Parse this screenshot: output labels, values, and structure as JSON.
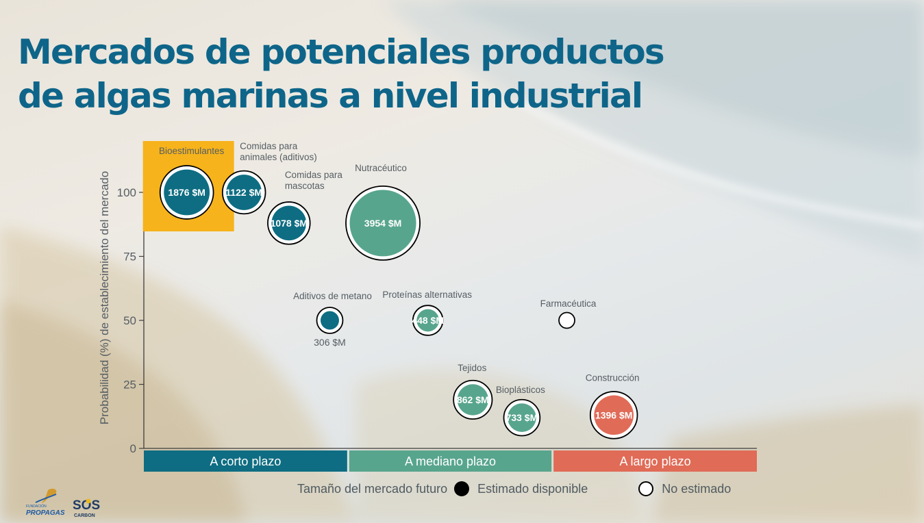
{
  "slide": {
    "title_line1": "Mercados de potenciales productos",
    "title_line2": "de algas marinas a nivel industrial"
  },
  "chart_data": {
    "type": "bubble",
    "ylabel": "Probabilidad (%) de establecimiento del mercado",
    "ylim": [
      0,
      115
    ],
    "yticks": [
      0,
      25,
      50,
      75,
      100
    ],
    "categories": [
      {
        "label": "A corto plazo",
        "color": "#0e6d82"
      },
      {
        "label": "A mediano plazo",
        "color": "#58a58d"
      },
      {
        "label": "A largo plazo",
        "color": "#e06b57"
      }
    ],
    "highlight": {
      "label": "Bioestimulantes",
      "color": "#f6b31b"
    },
    "points": [
      {
        "name": "Bioestimulantes",
        "x": 0.21,
        "y": 100,
        "size_musd": 1876,
        "value_label": "1876 $M",
        "estimated": true,
        "term": "A corto plazo"
      },
      {
        "name": "Comidas para animales (aditivos)",
        "x": 0.49,
        "y": 100,
        "size_musd": 1122,
        "value_label": "1122 $M",
        "estimated": true,
        "term": "A corto plazo"
      },
      {
        "name": "Comidas para mascotas",
        "x": 0.71,
        "y": 88,
        "size_musd": 1078,
        "value_label": "1078 $M",
        "estimated": true,
        "term": "A corto plazo"
      },
      {
        "name": "Nutracéutico",
        "x": 1.17,
        "y": 88,
        "size_musd": 3954,
        "value_label": "3954 $M",
        "estimated": true,
        "term": "A mediano plazo"
      },
      {
        "name": "Aditivos de metano",
        "x": 0.91,
        "y": 50,
        "size_musd": 306,
        "value_label": "306 $M",
        "estimated": true,
        "term": "A corto plazo"
      },
      {
        "name": "Proteínas alternativas",
        "x": 1.39,
        "y": 50,
        "size_musd": 448,
        "value_label": "448 $M",
        "estimated": true,
        "term": "A mediano plazo"
      },
      {
        "name": "Farmacéutica",
        "x": 2.07,
        "y": 50,
        "size_musd": null,
        "value_label": "",
        "estimated": false,
        "term": "A largo plazo"
      },
      {
        "name": "Tejidos",
        "x": 1.61,
        "y": 19,
        "size_musd": 862,
        "value_label": "862 $M",
        "estimated": true,
        "term": "A mediano plazo"
      },
      {
        "name": "Bioplásticos",
        "x": 1.85,
        "y": 12,
        "size_musd": 733,
        "value_label": "733 $M",
        "estimated": true,
        "term": "A mediano plazo"
      },
      {
        "name": "Construcción",
        "x": 2.3,
        "y": 13,
        "size_musd": 1396,
        "value_label": "1396 $M",
        "estimated": true,
        "term": "A largo plazo"
      }
    ],
    "legend": {
      "title": "Tamaño del mercado futuro",
      "items": [
        {
          "label": "Estimado disponible",
          "style": "filled",
          "color": "#000000"
        },
        {
          "label": "No estimado",
          "style": "hollow",
          "color": "#000000"
        }
      ]
    }
  },
  "logos": [
    {
      "name": "Fundación Propagas",
      "text_small": "FUNDACIÓN",
      "text": "PROPAGAS",
      "color": "#1b5aa6"
    },
    {
      "name": "SOS Carbon",
      "text": "SOS",
      "subtext": "CARBON",
      "color": "#1f3b63",
      "accent": "#e8b923"
    }
  ],
  "colors": {
    "title": "#0e6589",
    "axis_text": "#555d63",
    "label_text": "#555d63"
  }
}
